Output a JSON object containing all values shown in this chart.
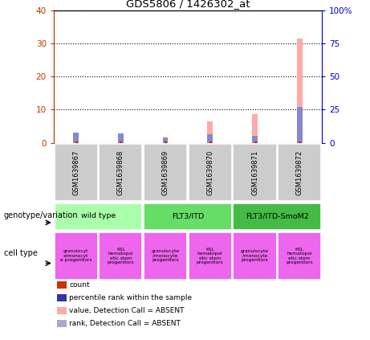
{
  "title": "GDS5806 / 1426302_at",
  "samples": [
    "GSM1639867",
    "GSM1639868",
    "GSM1639869",
    "GSM1639870",
    "GSM1639871",
    "GSM1639872"
  ],
  "pink_bars": [
    0.5,
    0.6,
    0.2,
    6.5,
    8.7,
    31.5
  ],
  "blue_bars": [
    3.0,
    2.8,
    1.5,
    2.5,
    2.2,
    10.8
  ],
  "ylim_left": [
    0,
    40
  ],
  "ylim_right": [
    0,
    100
  ],
  "yticks_left": [
    0,
    10,
    20,
    30,
    40
  ],
  "yticks_right": [
    0,
    25,
    50,
    75,
    100
  ],
  "ytick_labels_left": [
    "0",
    "10",
    "20",
    "30",
    "40"
  ],
  "ytick_labels_right": [
    "0",
    "25",
    "50",
    "75",
    "100%"
  ],
  "left_color": "#cc3300",
  "right_color": "#0000cc",
  "pink_color": "#ffaaaa",
  "blue_bar_color": "#8888cc",
  "red_dot_color": "#cc3300",
  "genotype_groups": [
    {
      "label": "wild type",
      "span": [
        0,
        2
      ],
      "color": "#aaffaa"
    },
    {
      "label": "FLT3/ITD",
      "span": [
        2,
        4
      ],
      "color": "#66dd66"
    },
    {
      "label": "FLT3/ITD-SmoM2",
      "span": [
        4,
        6
      ],
      "color": "#44bb44"
    }
  ],
  "cell_texts": [
    "granulocyt\ne/monocyt\ne progenitors",
    "KSL\nhematopoi\netic stem\nprogenitors",
    "granulocyte\n/monocyte\nprogenitors",
    "KSL\nhematopoi\netic stem\nprogenitors",
    "granulocyte\n/monocyte\nprogenitors",
    "KSL\nhematopoi\netic stem\nprogenitors"
  ],
  "legend_items": [
    {
      "label": "count",
      "color": "#cc3300"
    },
    {
      "label": "percentile rank within the sample",
      "color": "#3333aa"
    },
    {
      "label": "value, Detection Call = ABSENT",
      "color": "#ffaaaa"
    },
    {
      "label": "rank, Detection Call = ABSENT",
      "color": "#aaaacc"
    }
  ],
  "genotype_label": "genotype/variation",
  "celltype_label": "cell type",
  "sample_box_color": "#cccccc",
  "cell_color": "#ee66ee",
  "bg_color": "#ffffff",
  "bar_width": 0.12
}
